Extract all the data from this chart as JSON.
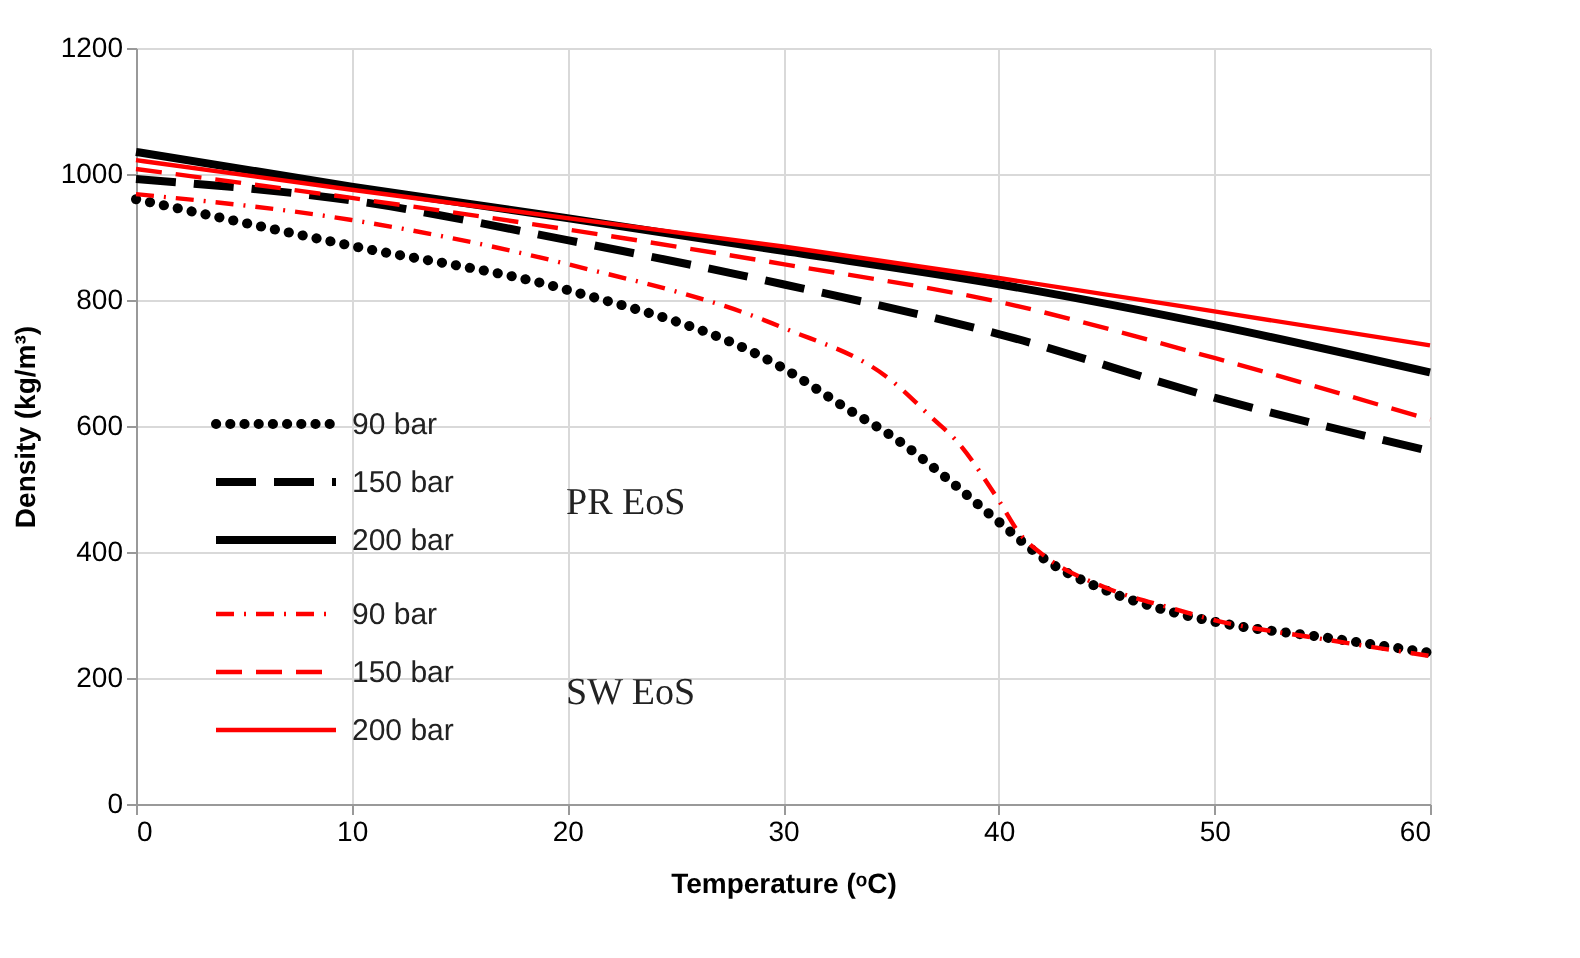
{
  "chart_data": {
    "type": "line",
    "xlabel": "Temperature (ᵒC)",
    "ylabel": "Density (kg/m³)",
    "xlim": [
      0,
      60
    ],
    "xticks": [
      0,
      10,
      20,
      30,
      40,
      50,
      60
    ],
    "ylim": [
      0,
      1200
    ],
    "yticks": [
      0,
      200,
      400,
      600,
      800,
      1000,
      1200
    ],
    "grid": true,
    "legend": "left",
    "annotations": [
      "PR EoS",
      "SW EoS"
    ],
    "series": [
      {
        "name": "90 bar",
        "color": "#000000",
        "line_style": "dotted",
        "x": [
          0,
          10,
          20,
          30,
          32.9,
          35.3,
          37.7,
          40,
          42.2,
          44.9,
          47.7,
          50.5,
          55,
          60
        ],
        "values": [
          960,
          886,
          816,
          692,
          629,
          578,
          514,
          448,
          387,
          340,
          308,
          286,
          265,
          240
        ]
      },
      {
        "name": "150 bar",
        "color": "#000000",
        "line_style": "dashed",
        "x": [
          0,
          10,
          20,
          30,
          40,
          50,
          60
        ],
        "values": [
          992,
          958,
          895,
          825,
          746,
          645,
          560
        ]
      },
      {
        "name": "200 bar",
        "color": "#000000",
        "line_style": "solid",
        "x": [
          0,
          10,
          20,
          30,
          40,
          50,
          60
        ],
        "values": [
          1035,
          980,
          930,
          878,
          825,
          760,
          685
        ]
      },
      {
        "name": "90 bar",
        "color": "#ff0000",
        "line_style": "dashdot",
        "x": [
          0,
          10,
          20,
          30,
          35,
          37,
          38,
          40,
          41,
          42,
          45,
          48,
          50,
          55,
          60
        ],
        "values": [
          968,
          927,
          857,
          756,
          673,
          610,
          578,
          482,
          428,
          397,
          343,
          311,
          292,
          262,
          235
        ]
      },
      {
        "name": "150 bar",
        "color": "#ff0000",
        "line_style": "dashed",
        "x": [
          0,
          10,
          20,
          30,
          40,
          50,
          60
        ],
        "values": [
          1008,
          962,
          912,
          857,
          797,
          708,
          610
        ]
      },
      {
        "name": "200 bar",
        "color": "#ff0000",
        "line_style": "solid",
        "x": [
          0,
          10,
          20,
          30,
          40,
          50,
          60
        ],
        "values": [
          1022,
          975,
          930,
          885,
          835,
          782,
          728
        ]
      }
    ]
  }
}
